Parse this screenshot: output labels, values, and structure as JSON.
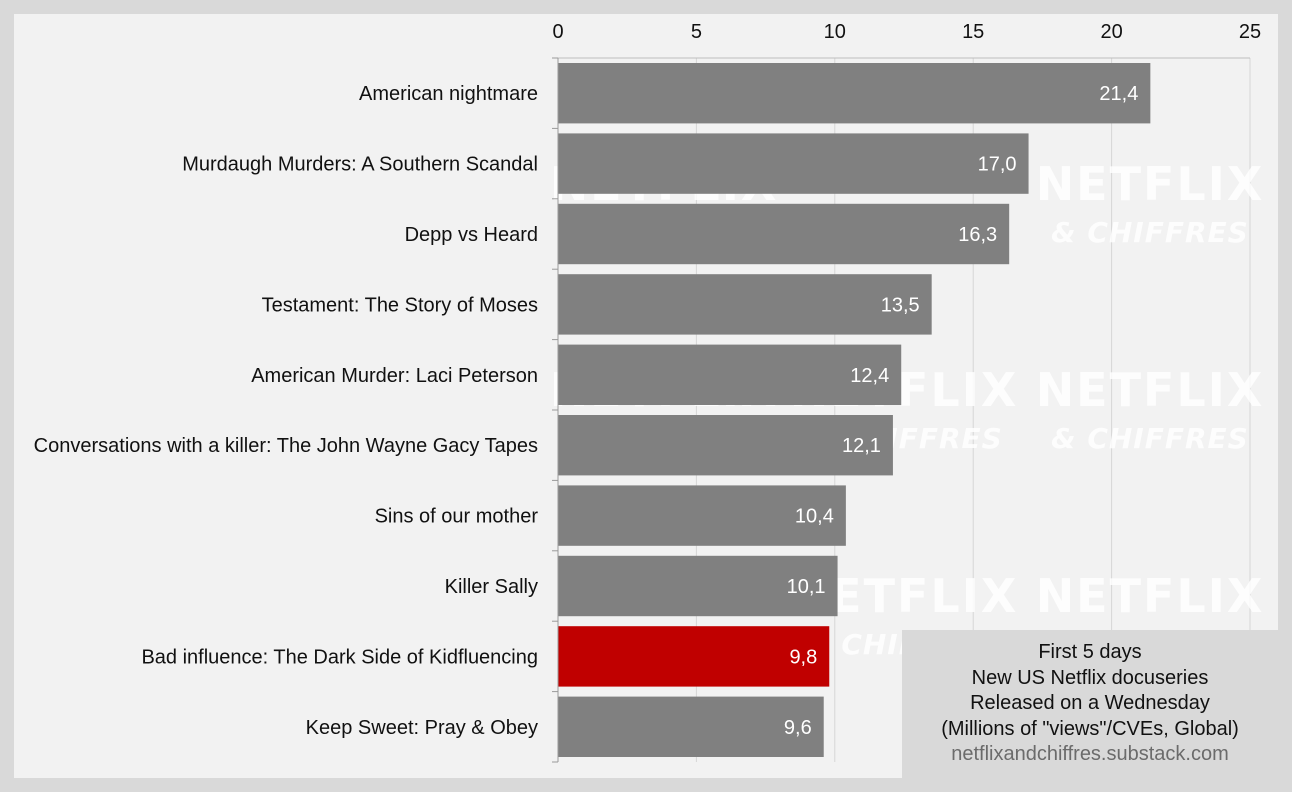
{
  "chart_data": {
    "type": "bar",
    "orientation": "horizontal",
    "categories": [
      "American nightmare",
      "Murdaugh Murders: A Southern Scandal",
      "Depp vs Heard",
      "Testament: The Story of Moses",
      "American Murder: Laci Peterson",
      "Conversations with a killer: The John Wayne Gacy Tapes",
      "Sins of our mother",
      "Killer Sally",
      "Bad influence: The Dark Side of Kidfluencing",
      "Keep Sweet: Pray & Obey"
    ],
    "values": [
      21.4,
      17.0,
      16.3,
      13.5,
      12.4,
      12.1,
      10.4,
      10.1,
      9.8,
      9.6
    ],
    "value_labels": [
      "21,4",
      "17,0",
      "16,3",
      "13,5",
      "12,4",
      "12,1",
      "10,4",
      "10,1",
      "9,8",
      "9,6"
    ],
    "highlight_index": 8,
    "bar_color": "#808080",
    "highlight_color": "#c00000",
    "xlim": [
      0,
      25
    ],
    "x_ticks": [
      0,
      5,
      10,
      15,
      20,
      25
    ],
    "x_tick_labels": [
      "0",
      "5",
      "10",
      "15",
      "20",
      "25"
    ],
    "x_axis_position": "top",
    "grid": true,
    "title": "",
    "xlabel": "",
    "ylabel": ""
  },
  "legend_box": {
    "lines": [
      "First 5 days",
      "New US Netflix docuseries",
      "Released on a Wednesday",
      "(Millions of \"views\"/CVEs, Global)"
    ],
    "source": "netflixandchiffres.substack.com"
  },
  "watermark": {
    "line1": "NETFLIX",
    "line2": "& CHIFFRES"
  }
}
